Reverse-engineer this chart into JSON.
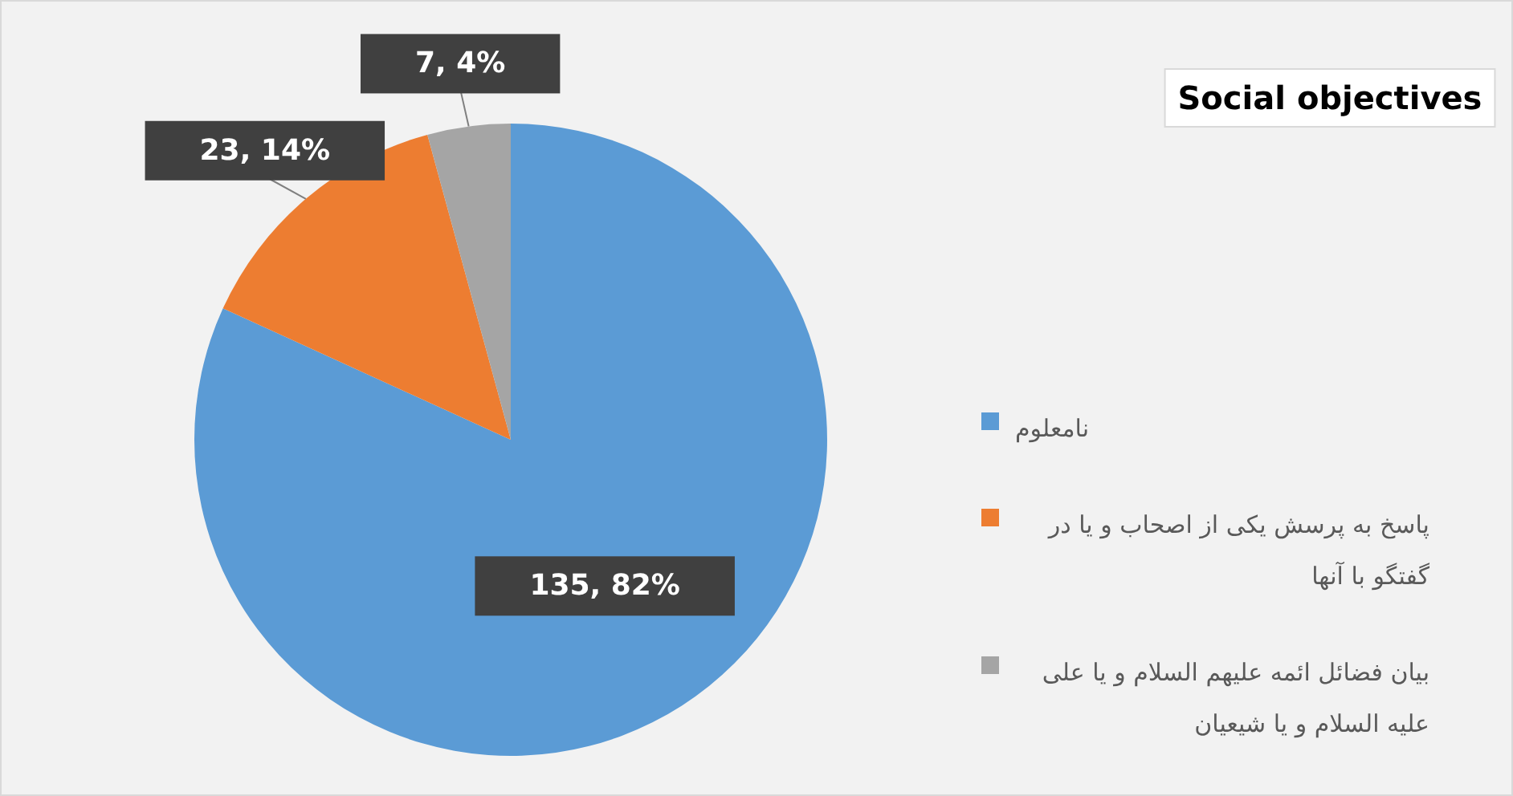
{
  "chart_data": {
    "type": "pie",
    "title": "Social objectives",
    "categories": [
      "نامعلوم",
      "پاسخ به پرسش یکی از اصحاب و یا در گفتگو با آنها",
      "بیان فضائل ائمه علیهم السلام و یا علی علیه السلام و یا شیعیان"
    ],
    "values": [
      135,
      23,
      7
    ],
    "colors": [
      "#5b9bd5",
      "#ed7d31",
      "#a5a5a5"
    ],
    "value_labels": [
      "135, 82%",
      "23, 14%",
      "7, 4%"
    ],
    "legend": "right"
  }
}
